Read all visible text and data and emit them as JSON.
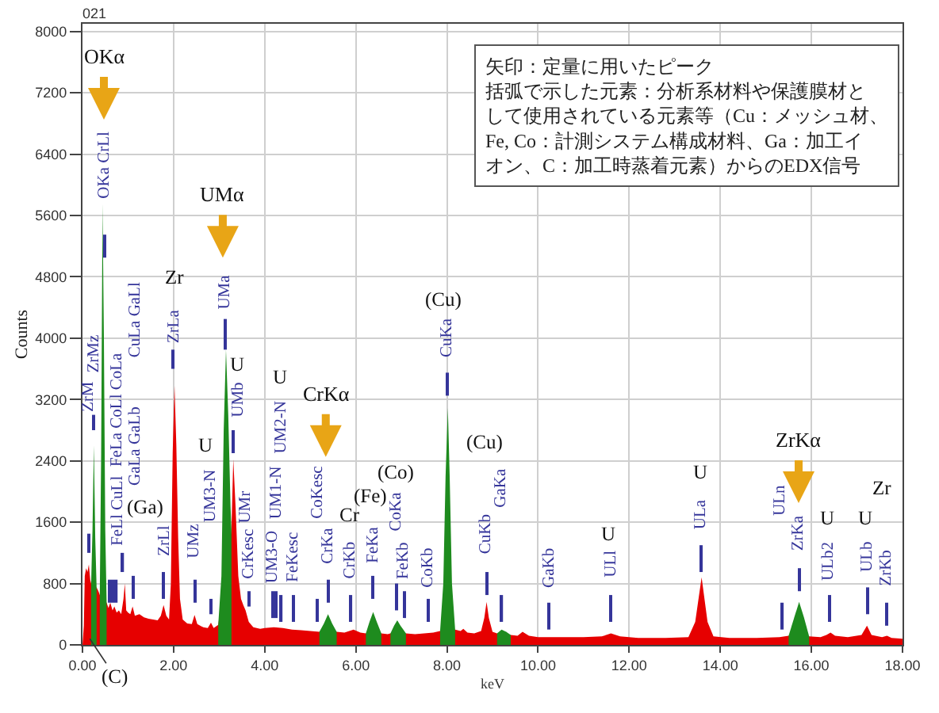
{
  "chart_data": {
    "type": "area",
    "title": "021",
    "xlabel": "keV",
    "ylabel": "Counts",
    "xlim": [
      0,
      18
    ],
    "ylim": [
      0,
      8100
    ],
    "xticks": [
      {
        "value": 0,
        "label": "0.00"
      },
      {
        "value": 2,
        "label": "2.00"
      },
      {
        "value": 4,
        "label": "4.00"
      },
      {
        "value": 6,
        "label": "6.00"
      },
      {
        "value": 8,
        "label": "8.00"
      },
      {
        "value": 10,
        "label": "10.00"
      },
      {
        "value": 12,
        "label": "12.00"
      },
      {
        "value": 14,
        "label": "14.00"
      },
      {
        "value": 16,
        "label": "16.00"
      },
      {
        "value": 18,
        "label": "18.00"
      }
    ],
    "yticks": [
      0,
      800,
      1600,
      2400,
      3200,
      4000,
      4800,
      5600,
      6400,
      7200,
      8000
    ],
    "grid": true,
    "series": [
      {
        "color": "#e60000",
        "x": [
          0,
          0.03,
          0.05,
          0.08,
          0.11,
          0.14,
          0.17,
          0.19,
          0.31,
          0.35,
          0.38,
          0.53,
          0.57,
          0.61,
          0.66,
          0.7,
          0.75,
          0.8,
          0.85,
          0.9,
          0.93,
          0.96,
          1.0,
          1.05,
          1.1,
          1.15,
          1.25,
          1.35,
          1.45,
          1.55,
          1.65,
          1.72,
          1.78,
          1.84,
          1.9,
          1.94,
          1.98,
          2.02,
          2.06,
          2.1,
          2.14,
          2.2,
          2.3,
          2.4,
          2.46,
          2.52,
          2.65,
          2.75,
          2.82,
          2.88,
          2.98,
          3.27,
          3.31,
          3.36,
          3.42,
          3.48,
          3.53,
          3.58,
          3.65,
          3.75,
          3.9,
          4.0,
          4.2,
          4.4,
          4.6,
          4.8,
          5.0,
          5.2,
          5.58,
          5.75,
          5.95,
          6.1,
          6.22,
          6.56,
          6.7,
          6.76,
          7.1,
          7.3,
          7.5,
          7.7,
          7.85,
          8.18,
          8.3,
          8.36,
          8.45,
          8.6,
          8.75,
          8.82,
          8.87,
          8.92,
          9.0,
          9.1,
          9.4,
          9.55,
          9.66,
          9.8,
          10.0,
          10.5,
          11.0,
          11.4,
          11.6,
          11.8,
          12.2,
          12.8,
          13.3,
          13.45,
          13.59,
          13.72,
          13.85,
          14.2,
          14.8,
          15.3,
          15.5,
          15.95,
          16.2,
          16.33,
          16.42,
          16.52,
          16.8,
          17.1,
          17.22,
          17.32,
          17.55,
          17.66,
          17.76,
          18.0
        ],
        "values": [
          0,
          250,
          900,
          1000,
          950,
          1050,
          850,
          800,
          750,
          700,
          650,
          550,
          480,
          550,
          450,
          500,
          420,
          450,
          400,
          600,
          800,
          450,
          420,
          400,
          500,
          380,
          400,
          360,
          340,
          330,
          320,
          380,
          520,
          380,
          330,
          800,
          2500,
          3380,
          2600,
          1400,
          600,
          330,
          280,
          270,
          390,
          270,
          230,
          220,
          290,
          220,
          260,
          1500,
          2420,
          1800,
          900,
          600,
          520,
          450,
          300,
          230,
          210,
          220,
          230,
          220,
          200,
          190,
          180,
          170,
          170,
          160,
          200,
          160,
          150,
          150,
          140,
          150,
          150,
          140,
          150,
          160,
          180,
          200,
          180,
          210,
          160,
          150,
          180,
          350,
          560,
          350,
          170,
          150,
          130,
          120,
          170,
          120,
          100,
          100,
          100,
          110,
          150,
          110,
          90,
          90,
          100,
          300,
          880,
          300,
          110,
          90,
          90,
          100,
          120,
          110,
          100,
          130,
          160,
          120,
          100,
          130,
          250,
          130,
          100,
          120,
          90,
          80
        ]
      },
      {
        "color": "#1e8b1e",
        "x": [
          0.19,
          0.22,
          0.25,
          0.28,
          0.31
        ],
        "values": [
          800,
          1500,
          2600,
          1400,
          750
        ]
      },
      {
        "color": "#1e8b1e",
        "x": [
          0.38,
          0.41,
          0.44,
          0.47,
          0.5,
          0.53
        ],
        "values": [
          650,
          2500,
          5750,
          4000,
          1500,
          550
        ]
      },
      {
        "color": "#1e8b1e",
        "x": [
          2.98,
          3.05,
          3.1,
          3.15,
          3.2,
          3.25,
          3.27
        ],
        "values": [
          260,
          900,
          2800,
          3850,
          3000,
          1800,
          1500
        ]
      },
      {
        "color": "#1e8b1e",
        "x": [
          5.2,
          5.3,
          5.39,
          5.48,
          5.58
        ],
        "values": [
          170,
          280,
          400,
          280,
          170
        ]
      },
      {
        "color": "#1e8b1e",
        "x": [
          6.22,
          6.3,
          6.38,
          6.46,
          6.56
        ],
        "values": [
          150,
          300,
          430,
          300,
          150
        ]
      },
      {
        "color": "#1e8b1e",
        "x": [
          6.76,
          6.84,
          6.91,
          6.98,
          7.1
        ],
        "values": [
          150,
          250,
          320,
          250,
          150
        ]
      },
      {
        "color": "#1e8b1e",
        "x": [
          7.85,
          7.92,
          7.97,
          8.02,
          8.06,
          8.11,
          8.18
        ],
        "values": [
          180,
          800,
          2200,
          3090,
          2200,
          800,
          200
        ]
      },
      {
        "color": "#1e8b1e",
        "x": [
          9.1,
          9.2,
          9.3,
          9.4
        ],
        "values": [
          150,
          200,
          170,
          130
        ]
      },
      {
        "color": "#1e8b1e",
        "x": [
          15.5,
          15.62,
          15.73,
          15.84,
          15.95
        ],
        "values": [
          120,
          350,
          560,
          350,
          110
        ]
      },
      {
        "type": "bar",
        "color": "#35359a",
        "x": [
          0.14,
          0.25,
          0.48,
          0.59,
          0.67,
          0.75,
          0.89,
          1.1,
          1.78,
          2.0,
          2.46,
          2.82,
          3.13,
          3.3,
          3.67,
          4.17,
          4.26,
          4.37,
          4.63,
          5.16,
          5.39,
          5.9,
          6.38,
          6.89,
          7.06,
          7.6,
          8.01,
          8.87,
          9.21,
          10.25,
          11.6,
          13.59,
          15.37,
          15.73,
          16.39,
          17.22,
          17.66
        ],
        "base": [
          1200,
          2800,
          5050,
          550,
          550,
          550,
          950,
          600,
          600,
          3600,
          550,
          400,
          3850,
          2500,
          500,
          350,
          350,
          300,
          300,
          300,
          550,
          300,
          600,
          450,
          350,
          300,
          3250,
          650,
          300,
          200,
          300,
          950,
          200,
          700,
          300,
          400,
          250
        ],
        "values": [
          250,
          200,
          300,
          300,
          300,
          300,
          250,
          300,
          350,
          250,
          300,
          200,
          400,
          300,
          200,
          350,
          350,
          350,
          350,
          300,
          300,
          350,
          300,
          350,
          350,
          300,
          300,
          300,
          350,
          350,
          350,
          350,
          350,
          300,
          350,
          350,
          300
        ]
      }
    ],
    "annotations": [
      "矢印：定量に用いたピーク",
      "括弧で示した元素：分析系材料や保護膜材として使用されている元素等（Cu：メッシュ材、Fe, Co：計測システム構成材料、Ga：加工イオン、C：加工時蒸着元素）からのEDX信号",
      "OKα",
      "UMα",
      "CrKα",
      "ZrKα",
      {
        "text": "(C)",
        "x": 0.16,
        "y": 80
      },
      "Zr",
      "U",
      "U",
      "U",
      "Cr",
      "(Fe)",
      "(Co)",
      "(Cu)",
      "(Cu)",
      "(Ga)",
      "U",
      "U",
      "U",
      "U",
      "Zr",
      "ZrM",
      "ZrMz",
      "OKa CrLl",
      "FeLl CuLl",
      "FeLa CoLl CoLa",
      "CuLa GaLl",
      "GaLa GaLb",
      "ZrLl",
      "ZrLa",
      "UMz",
      "UM3-N",
      "UMa",
      "UMb",
      "UMr",
      "CrKesc",
      "UM3-O",
      "UM1-N",
      "UM2-N",
      "FeKesc",
      "CoKesc",
      "CrKa",
      "CrKb",
      "FeKa",
      "CoKa",
      "FeKb",
      "CoKb",
      "CuKa",
      "CuKb",
      "GaKa",
      "GaKb",
      "ULl",
      "ULa",
      "ULn",
      "ZrKa",
      "ULb2",
      "ULb",
      "ZrKb"
    ]
  }
}
